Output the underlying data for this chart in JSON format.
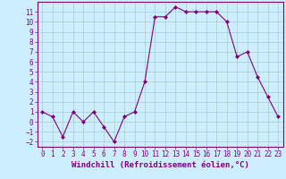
{
  "x": [
    0,
    1,
    2,
    3,
    4,
    5,
    6,
    7,
    8,
    9,
    10,
    11,
    12,
    13,
    14,
    15,
    16,
    17,
    18,
    19,
    20,
    21,
    22,
    23
  ],
  "y": [
    1,
    0.5,
    -1.5,
    1,
    0,
    1,
    -0.5,
    -2,
    0.5,
    1,
    4,
    10.5,
    10.5,
    11.5,
    11,
    11,
    11,
    11,
    10,
    6.5,
    7,
    4.5,
    2.5,
    0.5
  ],
  "line_color": "#800080",
  "marker_color": "#800080",
  "bg_color": "#cceeff",
  "grid_color": "#aacccc",
  "xlabel": "Windchill (Refroidissement éolien,°C)",
  "xlim": [
    -0.5,
    23.5
  ],
  "ylim": [
    -2.5,
    12
  ],
  "yticks": [
    -2,
    -1,
    0,
    1,
    2,
    3,
    4,
    5,
    6,
    7,
    8,
    9,
    10,
    11
  ],
  "xticks": [
    0,
    1,
    2,
    3,
    4,
    5,
    6,
    7,
    8,
    9,
    10,
    11,
    12,
    13,
    14,
    15,
    16,
    17,
    18,
    19,
    20,
    21,
    22,
    23
  ],
  "tick_color": "#800080",
  "axis_color": "#800080",
  "label_fontsize": 6.5,
  "tick_fontsize": 5.5
}
